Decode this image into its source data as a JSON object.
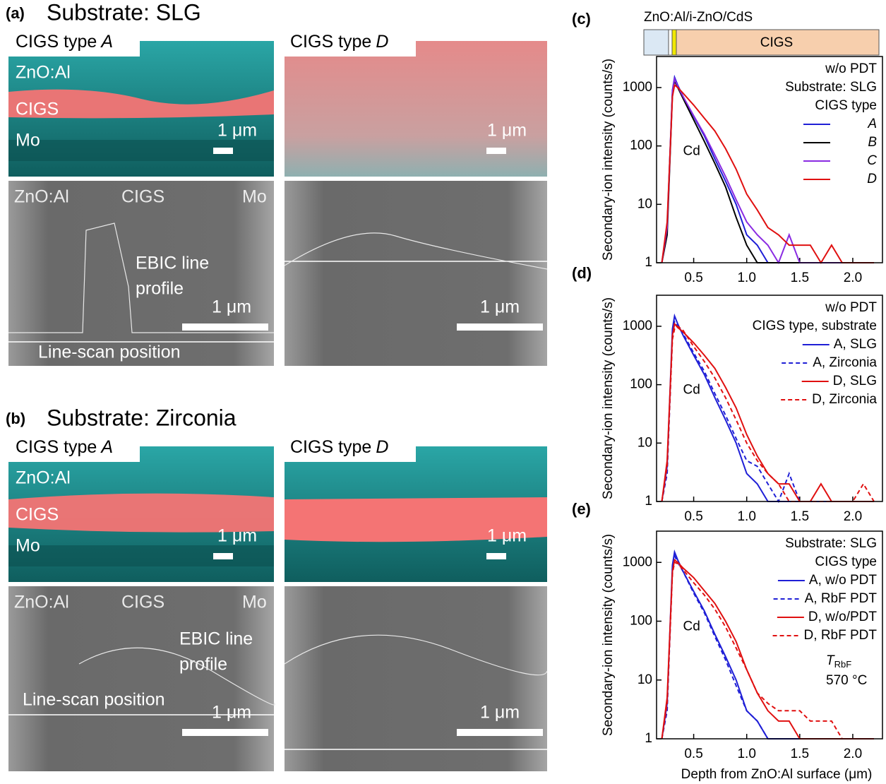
{
  "figure": {
    "a": {
      "label": "(a)",
      "title": "Substrate: SLG",
      "types": [
        {
          "prefix": "CIGS type",
          "letter": "A"
        },
        {
          "prefix": "CIGS type",
          "letter": "D"
        }
      ],
      "layers": [
        "ZnO:Al",
        "CIGS",
        "Mo"
      ],
      "scale": "1 μm",
      "sem_labels": [
        "ZnO:Al",
        "CIGS",
        "Mo"
      ],
      "ebic": [
        "EBIC line",
        "profile"
      ],
      "linescan": "Line-scan position"
    },
    "b": {
      "label": "(b)",
      "title": "Substrate: Zirconia",
      "types": [
        {
          "prefix": "CIGS type",
          "letter": "A"
        },
        {
          "prefix": "CIGS type",
          "letter": "D"
        }
      ],
      "layers": [
        "ZnO:Al",
        "CIGS",
        "Mo"
      ],
      "scale": "1 μm",
      "sem_labels": [
        "ZnO:Al",
        "CIGS",
        "Mo"
      ],
      "ebic": [
        "EBIC line",
        "profile"
      ],
      "linescan": "Line-scan position"
    }
  },
  "chart_data": [
    {
      "type": "line",
      "label": "(c)",
      "stack": {
        "top": "ZnO:Al/i-ZnO/CdS",
        "layer": "CIGS"
      },
      "ylabel": "Secondary-ion intensity (counts/s)",
      "log_y": true,
      "xlim": [
        0.15,
        2.28
      ],
      "ylim": [
        1,
        3400
      ],
      "xticks": [
        0.5,
        {
          "value": 1,
          "label": "1.0"
        },
        1.5,
        {
          "value": 2,
          "label": "2.0"
        }
      ],
      "yticks": [
        1,
        10,
        100,
        1000
      ],
      "legend": "upper right",
      "legend_title": [
        "w/o PDT",
        "Substrate: SLG",
        "CIGS type"
      ],
      "annotation": "Cd",
      "x": [
        0.2,
        0.25,
        0.3,
        0.32,
        0.35,
        0.4,
        0.5,
        0.6,
        0.7,
        0.8,
        0.9,
        1.0,
        1.1,
        1.2,
        1.3,
        1.4,
        1.5,
        1.6,
        1.7,
        1.8,
        1.9,
        2.0,
        2.1,
        2.2
      ],
      "series": [
        {
          "name": "A",
          "color": "#1f1fd6",
          "dash": false,
          "values": [
            1,
            4,
            900,
            1500,
            1100,
            700,
            320,
            150,
            60,
            25,
            10,
            3,
            2,
            1,
            1,
            1,
            1,
            1,
            1,
            1,
            1,
            1,
            1,
            1
          ]
        },
        {
          "name": "B",
          "color": "#000000",
          "dash": false,
          "values": [
            1,
            3,
            800,
            1300,
            1000,
            650,
            280,
            120,
            50,
            20,
            6,
            2,
            1,
            1,
            1,
            1,
            1,
            1,
            1,
            1,
            1,
            1,
            1,
            1
          ]
        },
        {
          "name": "C",
          "color": "#8a2be2",
          "dash": false,
          "values": [
            1,
            4,
            850,
            1400,
            1050,
            700,
            330,
            160,
            70,
            30,
            12,
            5,
            3,
            2,
            1,
            3,
            1,
            1,
            1,
            1,
            1,
            1,
            1,
            1
          ]
        },
        {
          "name": "D",
          "color": "#e01010",
          "dash": false,
          "values": [
            1,
            5,
            700,
            1100,
            1000,
            800,
            500,
            300,
            180,
            90,
            40,
            15,
            8,
            4,
            3,
            2,
            2,
            2,
            1,
            2,
            1,
            1,
            1,
            1
          ]
        }
      ]
    },
    {
      "type": "line",
      "label": "(d)",
      "ylabel": "Secondary-ion intensity (counts/s)",
      "log_y": true,
      "xlim": [
        0.15,
        2.28
      ],
      "ylim": [
        1,
        3400
      ],
      "xticks": [
        0.5,
        {
          "value": 1,
          "label": "1.0"
        },
        1.5,
        {
          "value": 2,
          "label": "2.0"
        }
      ],
      "yticks": [
        1,
        10,
        100,
        1000
      ],
      "legend": "upper right",
      "legend_title": [
        "w/o PDT",
        "CIGS type, substrate"
      ],
      "annotation": "Cd",
      "x": [
        0.2,
        0.25,
        0.3,
        0.32,
        0.35,
        0.4,
        0.5,
        0.6,
        0.7,
        0.8,
        0.9,
        1.0,
        1.1,
        1.2,
        1.3,
        1.4,
        1.5,
        1.6,
        1.7,
        1.8,
        1.9,
        2.0,
        2.1,
        2.2
      ],
      "series": [
        {
          "name": "A, SLG",
          "color": "#1f1fd6",
          "dash": false,
          "values": [
            1,
            4,
            900,
            1500,
            1100,
            700,
            320,
            150,
            60,
            25,
            10,
            3,
            2,
            1,
            1,
            1,
            1,
            1,
            1,
            1,
            1,
            1,
            1,
            1
          ]
        },
        {
          "name": "A, Zirconia",
          "color": "#1f1fd6",
          "dash": true,
          "values": [
            1,
            3,
            700,
            1200,
            1000,
            750,
            350,
            170,
            70,
            30,
            12,
            5,
            4,
            2,
            1,
            3,
            1,
            1,
            1,
            1,
            1,
            1,
            1,
            1
          ]
        },
        {
          "name": "D, SLG",
          "color": "#e01010",
          "dash": false,
          "values": [
            1,
            5,
            700,
            1100,
            950,
            800,
            520,
            320,
            190,
            90,
            40,
            14,
            6,
            3,
            2,
            2,
            1,
            1,
            2,
            1,
            1,
            1,
            1,
            1
          ]
        },
        {
          "name": "D, Zirconia",
          "color": "#e01010",
          "dash": true,
          "values": [
            1,
            4,
            600,
            900,
            1000,
            850,
            450,
            250,
            130,
            60,
            25,
            10,
            5,
            3,
            2,
            1,
            1,
            1,
            1,
            1,
            1,
            1,
            2,
            1
          ]
        }
      ]
    },
    {
      "type": "line",
      "label": "(e)",
      "ylabel": "Secondary-ion intensity (counts/s)",
      "xlabel": "Depth from ZnO:Al surface (μm)",
      "log_y": true,
      "xlim": [
        0.15,
        2.28
      ],
      "ylim": [
        1,
        3400
      ],
      "xticks": [
        0.5,
        {
          "value": 1,
          "label": "1.0"
        },
        1.5,
        {
          "value": 2,
          "label": "2.0"
        }
      ],
      "yticks": [
        1,
        10,
        100,
        1000
      ],
      "legend": "upper right",
      "legend_title": [
        "Substrate: SLG",
        "CIGS type"
      ],
      "annotation": "Cd",
      "temperature": {
        "symbol": "T",
        "subscript": "RbF",
        "value": "570 °C"
      },
      "x": [
        0.2,
        0.25,
        0.3,
        0.32,
        0.35,
        0.4,
        0.5,
        0.6,
        0.7,
        0.8,
        0.9,
        1.0,
        1.1,
        1.2,
        1.3,
        1.4,
        1.5,
        1.6,
        1.7,
        1.8,
        1.9,
        2.0,
        2.1,
        2.2
      ],
      "series": [
        {
          "name": "A, w/o PDT",
          "color": "#1f1fd6",
          "dash": false,
          "values": [
            1,
            4,
            900,
            1500,
            1100,
            700,
            320,
            150,
            60,
            25,
            10,
            3,
            2,
            1,
            1,
            1,
            1,
            1,
            1,
            1,
            1,
            1,
            1,
            1
          ]
        },
        {
          "name": "A, RbF PDT",
          "color": "#1f1fd6",
          "dash": true,
          "values": [
            1,
            3,
            800,
            1300,
            1000,
            700,
            300,
            140,
            55,
            22,
            8,
            3,
            2,
            1,
            1,
            1,
            1,
            1,
            1,
            1,
            1,
            1,
            1,
            1
          ]
        },
        {
          "name": "D, w/o/PDT",
          "color": "#e01010",
          "dash": false,
          "values": [
            1,
            5,
            700,
            1100,
            1000,
            800,
            550,
            330,
            200,
            100,
            45,
            15,
            6,
            3,
            2,
            2,
            1,
            1,
            1,
            1,
            1,
            1,
            1,
            1
          ]
        },
        {
          "name": "D, RbF PDT",
          "color": "#e01010",
          "dash": true,
          "values": [
            1,
            4,
            650,
            1000,
            950,
            750,
            450,
            280,
            160,
            80,
            35,
            15,
            6,
            4,
            3,
            3,
            3,
            2,
            2,
            2,
            1,
            1,
            1,
            1
          ]
        }
      ]
    }
  ]
}
